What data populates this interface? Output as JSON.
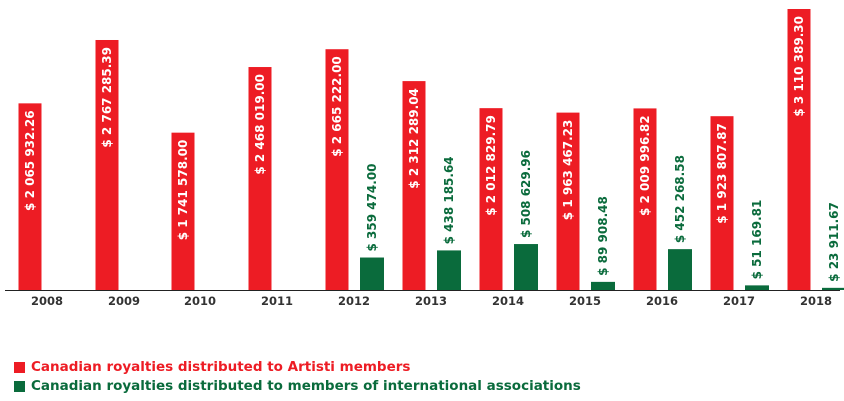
{
  "chart_data": {
    "type": "bar",
    "categories": [
      "2008",
      "2009",
      "2010",
      "2011",
      "2012",
      "2013",
      "2014",
      "2015",
      "2016",
      "2017",
      "2018"
    ],
    "ylim": [
      0,
      3110389.3
    ],
    "grid": false,
    "legend_placement": "bottom-left",
    "series": [
      {
        "name": "Canadian royalties distributed to Artisti members",
        "color": "#ed1c24",
        "values": [
          2065932.26,
          2767285.39,
          1741578.0,
          2468019.0,
          2665222.0,
          2312289.04,
          2012829.79,
          1963467.23,
          2009996.82,
          1923807.87,
          3110389.3
        ],
        "labels": [
          "$ 2 065 932.26",
          "$ 2 767 285.39",
          "$ 1 741 578.00",
          "$ 2 468 019.00",
          "$ 2 665 222.00",
          "$ 2 312 289.04",
          "$ 2 012 829.79",
          "$ 1 963 467.23",
          "$ 2 009 996.82",
          "$ 1 923 807.87",
          "$ 3 110 389.30"
        ]
      },
      {
        "name": "Canadian royalties distributed to members of international associations",
        "color": "#0a6b3c",
        "values": [
          0,
          0,
          0,
          0,
          359474.0,
          438185.64,
          508629.96,
          89908.48,
          452268.58,
          51169.81,
          23911.67
        ],
        "labels": [
          "",
          "",
          "",
          "",
          "$ 359 474.00",
          "$ 438 185.64",
          "$ 508 629.96",
          "$ 89 908.48",
          "$ 452 268.58",
          "$ 51 169.81",
          "$ 23 911.67"
        ]
      }
    ]
  }
}
